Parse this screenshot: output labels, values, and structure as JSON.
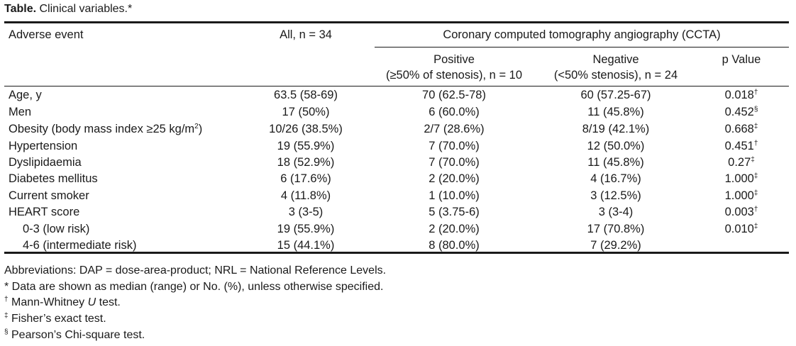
{
  "caption": {
    "label": "Table.",
    "text": "Clinical variables.*"
  },
  "header": {
    "adverse_event": "Adverse event",
    "all": "All, n = 34",
    "ccta": "Coronary computed tomography angiography (CCTA)",
    "positive_line1": "Positive",
    "positive_line2": "(≥50% of stenosis), n = 10",
    "negative_line1": "Negative",
    "negative_line2": "(<50% stenosis), n = 24",
    "p_value": "p Value"
  },
  "rows": [
    {
      "label": "Age, y",
      "all": "63.5 (58-69)",
      "positive": "70 (62.5-78)",
      "negative": "60 (57.25-67)",
      "p": "0.018",
      "p_mark": "†"
    },
    {
      "label": "Men",
      "all": "17 (50%)",
      "positive": "6 (60.0%)",
      "negative": "11 (45.8%)",
      "p": "0.452",
      "p_mark": "§"
    },
    {
      "label": "Obesity (body mass index ≥25 kg/m",
      "label_sup": "2",
      "label_tail": ")",
      "all": "10/26 (38.5%)",
      "positive": "2/7 (28.6%)",
      "negative": "8/19 (42.1%)",
      "p": "0.668",
      "p_mark": "‡"
    },
    {
      "label": "Hypertension",
      "all": "19 (55.9%)",
      "positive": "7 (70.0%)",
      "negative": "12 (50.0%)",
      "p": "0.451",
      "p_mark": "†"
    },
    {
      "label": "Dyslipidaemia",
      "all": "18 (52.9%)",
      "positive": "7 (70.0%)",
      "negative": "11 (45.8%)",
      "p": "0.27",
      "p_mark": "‡"
    },
    {
      "label": "Diabetes mellitus",
      "all": "6 (17.6%)",
      "positive": "2 (20.0%)",
      "negative": "4 (16.7%)",
      "p": "1.000",
      "p_mark": "‡"
    },
    {
      "label": "Current smoker",
      "all": "4 (11.8%)",
      "positive": "1 (10.0%)",
      "negative": "3 (12.5%)",
      "p": "1.000",
      "p_mark": "‡"
    },
    {
      "label": "HEART score",
      "all": "3 (3-5)",
      "positive": "5 (3.75-6)",
      "negative": "3 (3-4)",
      "p": "0.003",
      "p_mark": "†"
    },
    {
      "label": "0-3 (low risk)",
      "all": "19 (55.9%)",
      "positive": "2 (20.0%)",
      "negative": "17 (70.8%)",
      "p": "0.010",
      "p_mark": "‡"
    },
    {
      "label": "4-6 (intermediate risk)",
      "all": "15 (44.1%)",
      "positive": "8 (80.0%)",
      "negative": "7 (29.2%)",
      "p": "",
      "p_mark": ""
    }
  ],
  "footnotes": {
    "abbrev": "Abbreviations: DAP = dose-area-product; NRL = National Reference Levels.",
    "star_mark": "*",
    "star_text": " Data are shown as median (range) or No. (%), unless otherwise specified.",
    "dagger_mark": "†",
    "dagger_text_pre": " Mann-Whitney ",
    "dagger_text_italic": "U",
    "dagger_text_post": " test.",
    "ddagger_mark": "‡",
    "ddagger_text": " Fisher’s exact test.",
    "section_mark": "§",
    "section_text": " Pearson’s Chi-square test."
  }
}
